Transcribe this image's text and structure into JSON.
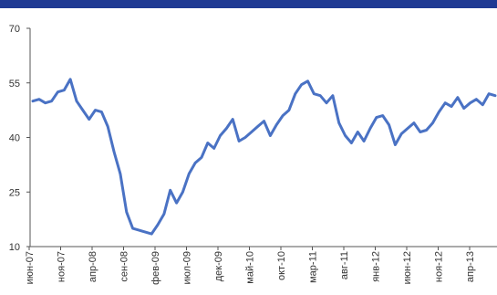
{
  "colors": {
    "header_bar": "#1f3a93",
    "series": "#4a72c4",
    "axis": "#555555"
  },
  "chart_data": {
    "type": "line",
    "title": "",
    "xlabel": "",
    "ylabel": "",
    "ylim": [
      10,
      70
    ],
    "yticks": [
      "70",
      "55",
      "40",
      "25",
      "10"
    ],
    "ytick_values": [
      70,
      55,
      40,
      25,
      10
    ],
    "xtick_labels": [
      "июн-07",
      "ноя-07",
      "апр-08",
      "сен-08",
      "фев-09",
      "июл-09",
      "дек-09",
      "май-10",
      "окт-10",
      "мар-11",
      "авг-11",
      "янв-12",
      "июн-12",
      "ноя-12",
      "апр-13"
    ],
    "grid": false,
    "legend": "none",
    "series": [
      {
        "x": [
          "2007-06",
          "2007-07",
          "2007-08",
          "2007-09",
          "2007-10",
          "2007-11",
          "2007-12",
          "2008-01",
          "2008-02",
          "2008-03",
          "2008-04",
          "2008-05",
          "2008-06",
          "2008-07",
          "2008-08",
          "2008-09",
          "2008-10",
          "2008-11",
          "2008-12",
          "2009-01",
          "2009-02",
          "2009-03",
          "2009-04",
          "2009-05",
          "2009-06",
          "2009-07",
          "2009-08",
          "2009-09",
          "2009-10",
          "2009-11",
          "2009-12",
          "2010-01",
          "2010-02",
          "2010-03",
          "2010-04",
          "2010-05",
          "2010-06",
          "2010-07",
          "2010-08",
          "2010-09",
          "2010-10",
          "2010-11",
          "2010-12",
          "2011-01",
          "2011-02",
          "2011-03",
          "2011-04",
          "2011-05",
          "2011-06",
          "2011-07",
          "2011-08",
          "2011-09",
          "2011-10",
          "2011-11",
          "2011-12",
          "2012-01",
          "2012-02",
          "2012-03",
          "2012-04",
          "2012-05",
          "2012-06",
          "2012-07",
          "2012-08",
          "2012-09",
          "2012-10",
          "2012-11",
          "2012-12",
          "2013-01",
          "2013-02",
          "2013-03",
          "2013-04",
          "2013-05",
          "2013-06",
          "2013-07",
          "2013-08"
        ],
        "values": [
          50.0,
          50.5,
          49.5,
          50.0,
          52.5,
          53.0,
          56.0,
          50.0,
          47.5,
          45.0,
          47.5,
          47.0,
          43.0,
          36.0,
          30.0,
          19.5,
          15.0,
          14.5,
          14.0,
          13.5,
          16.0,
          19.0,
          25.5,
          22.0,
          25.0,
          30.0,
          33.0,
          34.5,
          38.5,
          37.0,
          40.5,
          42.5,
          45.0,
          39.0,
          40.0,
          41.5,
          43.0,
          44.5,
          40.5,
          43.5,
          46.0,
          47.5,
          52.0,
          54.5,
          55.5,
          52.0,
          51.5,
          49.5,
          51.5,
          44.0,
          40.5,
          38.5,
          41.5,
          39.0,
          42.5,
          45.5,
          46.0,
          43.5,
          38.0,
          41.0,
          42.5,
          44.0,
          41.5,
          42.0,
          44.0,
          47.0,
          49.5,
          48.5,
          51.0,
          48.0,
          49.5,
          50.5,
          49.0,
          52.0,
          51.5
        ]
      }
    ]
  }
}
